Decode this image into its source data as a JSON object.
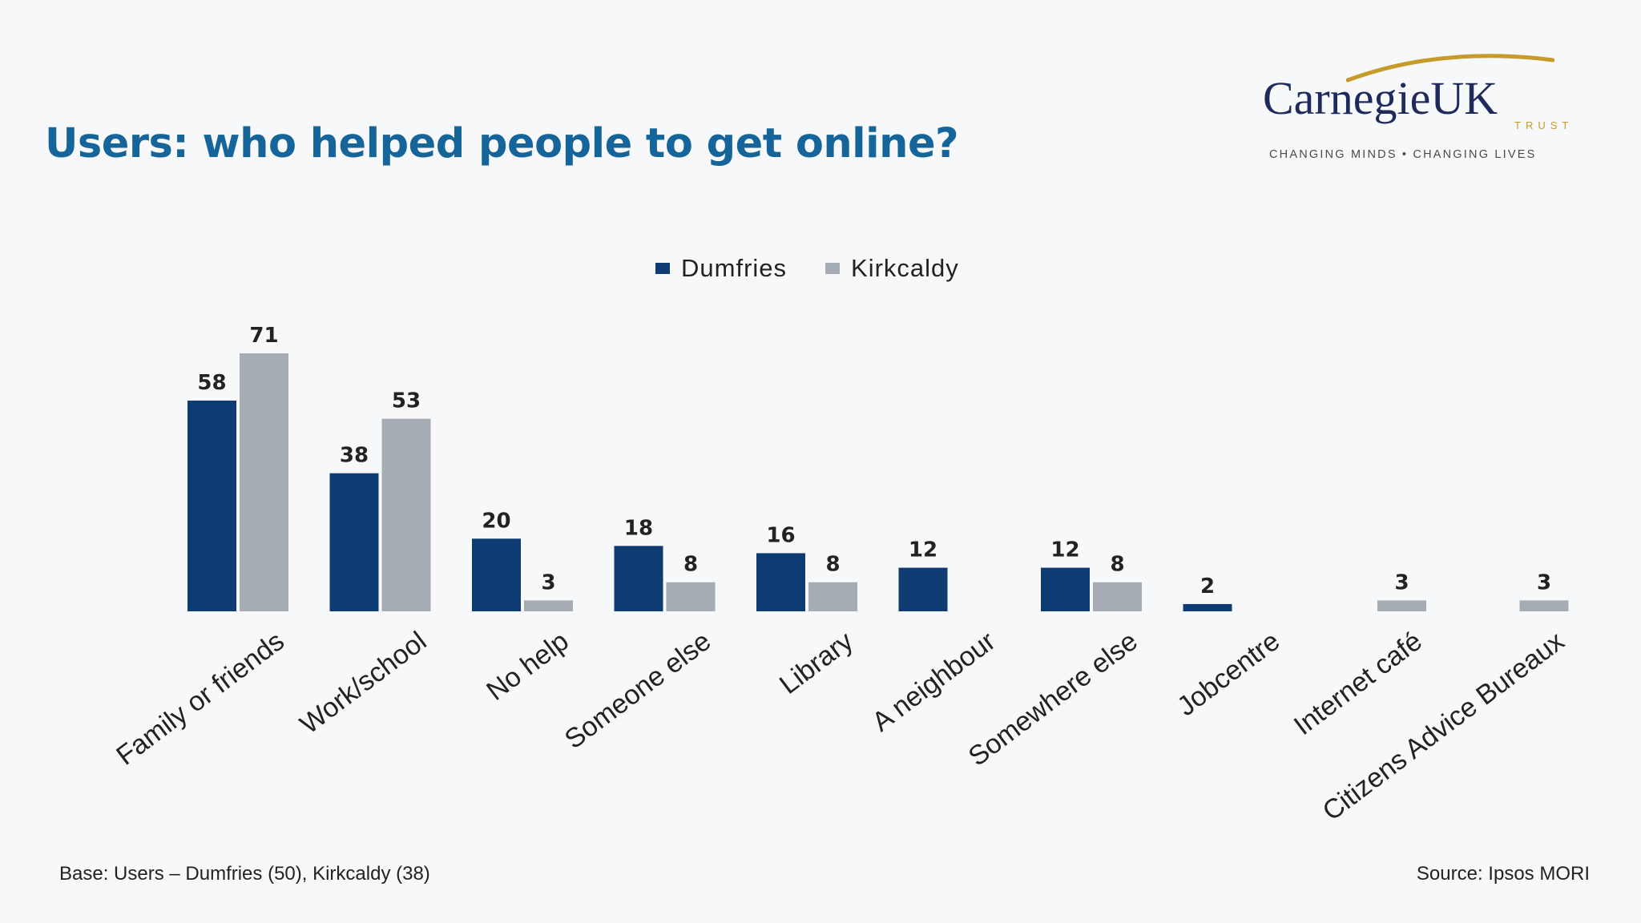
{
  "slide": {
    "title": "Users: who helped people to get online?",
    "base_note": "Base: Users – Dumfries (50), Kirkcaldy (38)",
    "source_note": "Source: Ipsos MORI"
  },
  "logo": {
    "name": "CarnegieUK",
    "sub": "TRUST",
    "tagline": "CHANGING MINDS • CHANGING LIVES"
  },
  "colors": {
    "title": "#16659a",
    "dumfries": "#0d3b72",
    "kirkcaldy": "#a6acb3"
  },
  "chart_data": {
    "type": "bar",
    "title": "",
    "xlabel": "",
    "ylabel": "",
    "ylim": [
      0,
      80
    ],
    "grid": false,
    "legend_position": "top-center",
    "categories": [
      "Family or friends",
      "Work/school",
      "No help",
      "Someone else",
      "Library",
      "A neighbour",
      "Somewhere else",
      "Jobcentre",
      "Internet café",
      "Citizens Advice Bureaux"
    ],
    "series": [
      {
        "name": "Dumfries",
        "values": [
          58,
          38,
          20,
          18,
          16,
          12,
          12,
          2,
          null,
          null
        ]
      },
      {
        "name": "Kirkcaldy",
        "values": [
          71,
          53,
          3,
          8,
          8,
          null,
          8,
          null,
          3,
          3
        ]
      }
    ]
  }
}
